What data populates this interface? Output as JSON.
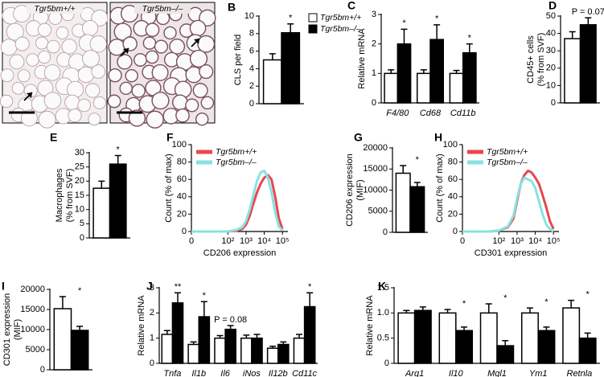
{
  "chart_data": [
    {
      "type": "image",
      "panel": "A",
      "images": [
        {
          "title": "Tgr5bm+/+"
        },
        {
          "title": "Tgr5bm–/–"
        }
      ]
    },
    {
      "type": "bar",
      "panel": "B",
      "ylabel": [
        "CLS per field"
      ],
      "ylim": [
        0,
        10
      ],
      "yticks": [
        0,
        2,
        4,
        6,
        8,
        10
      ],
      "categories": [
        null
      ],
      "legend": "right",
      "series": [
        {
          "name": "Tgr5bm+/+",
          "color": "#ffffff",
          "values": [
            5
          ],
          "errors": [
            0.7
          ]
        },
        {
          "name": "Tgr5bm–/–",
          "color": "#000000",
          "values": [
            8.1
          ],
          "errors": [
            1.0
          ]
        }
      ],
      "annotations": [
        "*"
      ]
    },
    {
      "type": "bar",
      "panel": "C",
      "ylabel": [
        "Relative mRNA"
      ],
      "ylim": [
        0,
        3
      ],
      "yticks": [
        0,
        1,
        2,
        3
      ],
      "categories": [
        "F4/80",
        "Cd68",
        "Cd11b"
      ],
      "series": [
        {
          "color": "#ffffff",
          "values": [
            1.0,
            1.0,
            1.0
          ],
          "errors": [
            0.12,
            0.12,
            0.1
          ]
        },
        {
          "color": "#000000",
          "values": [
            2.0,
            2.15,
            1.7
          ],
          "errors": [
            0.5,
            0.5,
            0.3
          ]
        }
      ],
      "annotations": [
        "*",
        "*",
        "*"
      ]
    },
    {
      "type": "bar",
      "panel": "D",
      "ylabel": [
        "CD45+ cells",
        "(% from SVF)"
      ],
      "ylim": [
        0,
        50
      ],
      "yticks": [
        0,
        10,
        20,
        30,
        40,
        50
      ],
      "categories": [
        null
      ],
      "series": [
        {
          "color": "#ffffff",
          "values": [
            37
          ],
          "errors": [
            4
          ]
        },
        {
          "color": "#000000",
          "values": [
            45
          ],
          "errors": [
            4
          ]
        }
      ],
      "annotations": [
        "P = 0.07"
      ]
    },
    {
      "type": "bar",
      "panel": "E",
      "ylabel": [
        "Macrophages",
        "(% from SVF)"
      ],
      "ylim": [
        0,
        30
      ],
      "yticks": [
        0,
        5,
        10,
        15,
        20,
        25,
        30
      ],
      "categories": [
        null
      ],
      "series": [
        {
          "color": "#ffffff",
          "values": [
            17.5
          ],
          "errors": [
            2.5
          ]
        },
        {
          "color": "#000000",
          "values": [
            26
          ],
          "errors": [
            3
          ]
        }
      ],
      "annotations": [
        "*"
      ]
    },
    {
      "type": "line",
      "panel": "F",
      "ylabel": [
        "Count (% of max)"
      ],
      "xlabel": "CD206 expression",
      "ylim": [
        0,
        100
      ],
      "yticks": [
        0,
        20,
        40,
        60,
        80,
        100
      ],
      "xlim": [
        0,
        5.3
      ],
      "xticks": [
        0,
        {
          "value": 2,
          "label": "10²"
        },
        {
          "value": 3,
          "label": "10³"
        },
        {
          "value": 4,
          "label": "10⁴"
        },
        {
          "value": 5,
          "label": "10⁵"
        }
      ],
      "legend": "upper left",
      "x": [
        0,
        0.5,
        1,
        1.5,
        2,
        2.5,
        2.8,
        3,
        3.2,
        3.4,
        3.6,
        3.8,
        4.0,
        4.2,
        4.4,
        4.6,
        4.8,
        5.0
      ],
      "series": [
        {
          "name": "Tgr5bm+/+",
          "color": "#e8474f",
          "values": [
            0,
            0,
            0,
            0,
            0,
            1,
            3,
            8,
            18,
            32,
            45,
            55,
            62,
            65,
            60,
            40,
            15,
            3
          ]
        },
        {
          "name": "Tgr5bm–/–",
          "color": "#86e3e0",
          "values": [
            0,
            0,
            0,
            0,
            0,
            2,
            5,
            12,
            25,
            42,
            58,
            68,
            70,
            62,
            45,
            22,
            6,
            1
          ]
        }
      ]
    },
    {
      "type": "bar",
      "panel": "G",
      "ylabel": [
        "CD206 expression",
        "(MIF)"
      ],
      "ylim": [
        0,
        20000
      ],
      "yticks": [
        0,
        5000,
        10000,
        15000,
        20000
      ],
      "categories": [
        null
      ],
      "series": [
        {
          "color": "#ffffff",
          "values": [
            14000
          ],
          "errors": [
            1800
          ]
        },
        {
          "color": "#000000",
          "values": [
            10800
          ],
          "errors": [
            1000
          ]
        }
      ],
      "annotations": [
        "*"
      ]
    },
    {
      "type": "line",
      "panel": "H",
      "ylabel": [
        "Count (% of max)"
      ],
      "xlabel": "CD301 expression",
      "ylim": [
        0,
        100
      ],
      "yticks": [
        0,
        20,
        40,
        60,
        80,
        100
      ],
      "xlim": [
        0,
        5.3
      ],
      "xticks": [
        0,
        {
          "value": 2,
          "label": "10²"
        },
        {
          "value": 3,
          "label": "10³"
        },
        {
          "value": 4,
          "label": "10⁴"
        },
        {
          "value": 5,
          "label": "10⁵"
        }
      ],
      "legend": "upper left",
      "x": [
        0,
        0.5,
        1,
        1.5,
        2,
        2.5,
        2.8,
        3,
        3.2,
        3.4,
        3.6,
        3.8,
        4.0,
        4.2,
        4.4,
        4.6,
        4.8,
        5.0
      ],
      "series": [
        {
          "name": "Tgr5bm+/+",
          "color": "#e8474f",
          "values": [
            0,
            0,
            0,
            0,
            1,
            5,
            15,
            35,
            55,
            65,
            70,
            68,
            62,
            55,
            42,
            28,
            12,
            3
          ]
        },
        {
          "name": "Tgr5bm–/–",
          "color": "#86e3e0",
          "values": [
            0,
            0,
            0,
            0,
            1,
            6,
            18,
            38,
            55,
            62,
            60,
            58,
            50,
            35,
            20,
            8,
            3,
            0
          ]
        }
      ]
    },
    {
      "type": "bar",
      "panel": "I",
      "ylabel": [
        "CD301 expression",
        "(MIF)"
      ],
      "ylim": [
        0,
        20000
      ],
      "yticks": [
        0,
        5000,
        10000,
        15000,
        20000
      ],
      "categories": [
        null
      ],
      "series": [
        {
          "color": "#ffffff",
          "values": [
            15200
          ],
          "errors": [
            3000
          ]
        },
        {
          "color": "#000000",
          "values": [
            9800
          ],
          "errors": [
            1000
          ]
        }
      ],
      "annotations": [
        "*"
      ]
    },
    {
      "type": "bar",
      "panel": "J",
      "ylabel": [
        "Relative mRNA"
      ],
      "ylim": [
        0,
        3
      ],
      "yticks": [
        0,
        1,
        2,
        3
      ],
      "categories": [
        "Tnfa",
        "Il1b",
        "Il6",
        "iNos",
        "Il12b",
        "Cd11c"
      ],
      "series": [
        {
          "color": "#ffffff",
          "values": [
            1.15,
            0.75,
            1.0,
            1.0,
            0.6,
            1.0
          ],
          "errors": [
            0.15,
            0.1,
            0.1,
            0.12,
            0.08,
            0.15
          ]
        },
        {
          "color": "#000000",
          "values": [
            2.4,
            1.85,
            1.35,
            1.0,
            0.75,
            2.25
          ],
          "errors": [
            0.4,
            0.6,
            0.15,
            0.15,
            0.1,
            0.55
          ]
        }
      ],
      "annotations": [
        "**",
        "*",
        "P = 0.08",
        null,
        null,
        "*"
      ]
    },
    {
      "type": "bar",
      "panel": "K",
      "ylabel": [
        "Relative mRNA"
      ],
      "ylim": [
        0,
        1.5
      ],
      "yticks": [
        0,
        0.5,
        {
          "value": 1,
          "label": "1.0"
        },
        1.5
      ],
      "categories": [
        "Arg1",
        "Il10",
        "Mgl1",
        "Ym1",
        "Retnla"
      ],
      "series": [
        {
          "color": "#ffffff",
          "values": [
            1.0,
            1.0,
            1.0,
            1.0,
            1.1
          ],
          "errors": [
            0.05,
            0.07,
            0.18,
            0.1,
            0.15
          ]
        },
        {
          "color": "#000000",
          "values": [
            1.05,
            0.65,
            0.35,
            0.65,
            0.5
          ],
          "errors": [
            0.07,
            0.07,
            0.1,
            0.07,
            0.1
          ]
        }
      ],
      "annotations": [
        null,
        "*",
        "*",
        "*",
        "*"
      ]
    }
  ]
}
